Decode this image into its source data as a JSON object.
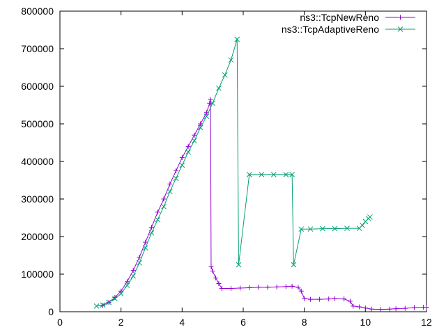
{
  "chart_data": {
    "type": "line",
    "title": "",
    "xlabel": "",
    "ylabel": "",
    "xlim": [
      0,
      12
    ],
    "ylim": [
      0,
      800000
    ],
    "x_ticks": [
      0,
      2,
      4,
      6,
      8,
      10,
      12
    ],
    "x_tick_labels": [
      "0",
      "2",
      "4",
      "6",
      "8",
      "10",
      "12"
    ],
    "y_ticks": [
      0,
      100000,
      200000,
      300000,
      400000,
      500000,
      600000,
      700000,
      800000
    ],
    "y_tick_labels": [
      "0",
      "100000",
      "200000",
      "300000",
      "400000",
      "500000",
      "600000",
      "700000",
      "800000"
    ],
    "grid": false,
    "legend_position": "top-right",
    "series": [
      {
        "name": "ns3::TcpNewReno",
        "color": "#9400d3",
        "marker": "plus",
        "points": [
          [
            1.4,
            16000
          ],
          [
            1.6,
            25000
          ],
          [
            1.8,
            38000
          ],
          [
            2.0,
            55000
          ],
          [
            2.2,
            80000
          ],
          [
            2.4,
            110000
          ],
          [
            2.6,
            145000
          ],
          [
            2.8,
            185000
          ],
          [
            3.0,
            225000
          ],
          [
            3.2,
            265000
          ],
          [
            3.4,
            300000
          ],
          [
            3.6,
            340000
          ],
          [
            3.8,
            375000
          ],
          [
            4.0,
            410000
          ],
          [
            4.2,
            440000
          ],
          [
            4.4,
            470000
          ],
          [
            4.6,
            500000
          ],
          [
            4.8,
            530000
          ],
          [
            4.9,
            555000
          ],
          [
            4.93,
            565000
          ],
          [
            4.95,
            120000
          ],
          [
            5.0,
            108000
          ],
          [
            5.1,
            90000
          ],
          [
            5.2,
            75000
          ],
          [
            5.3,
            62000
          ],
          [
            5.6,
            62000
          ],
          [
            5.9,
            63000
          ],
          [
            6.2,
            64000
          ],
          [
            6.5,
            65000
          ],
          [
            6.8,
            65000
          ],
          [
            7.1,
            66000
          ],
          [
            7.4,
            67000
          ],
          [
            7.6,
            68000
          ],
          [
            7.8,
            65000
          ],
          [
            7.9,
            55000
          ],
          [
            8.0,
            35000
          ],
          [
            8.2,
            33000
          ],
          [
            8.5,
            33000
          ],
          [
            8.8,
            34000
          ],
          [
            9.0,
            35000
          ],
          [
            9.3,
            34000
          ],
          [
            9.5,
            28000
          ],
          [
            9.6,
            15000
          ],
          [
            9.8,
            13000
          ],
          [
            10.0,
            10000
          ],
          [
            10.2,
            7000
          ],
          [
            10.5,
            6000
          ],
          [
            10.8,
            7000
          ],
          [
            11.0,
            8000
          ],
          [
            11.3,
            9000
          ],
          [
            11.6,
            11000
          ],
          [
            11.9,
            12000
          ],
          [
            12.0,
            12000
          ]
        ]
      },
      {
        "name": "ns3::TcpAdaptiveReno",
        "color": "#009e73",
        "marker": "cross",
        "points": [
          [
            1.2,
            15000
          ],
          [
            1.4,
            18000
          ],
          [
            1.6,
            25000
          ],
          [
            1.8,
            35000
          ],
          [
            2.0,
            48000
          ],
          [
            2.2,
            70000
          ],
          [
            2.4,
            95000
          ],
          [
            2.6,
            130000
          ],
          [
            2.8,
            170000
          ],
          [
            3.0,
            210000
          ],
          [
            3.2,
            245000
          ],
          [
            3.4,
            280000
          ],
          [
            3.6,
            320000
          ],
          [
            3.8,
            355000
          ],
          [
            4.0,
            390000
          ],
          [
            4.2,
            425000
          ],
          [
            4.4,
            455000
          ],
          [
            4.6,
            490000
          ],
          [
            4.8,
            520000
          ],
          [
            5.0,
            555000
          ],
          [
            5.2,
            595000
          ],
          [
            5.4,
            630000
          ],
          [
            5.6,
            670000
          ],
          [
            5.8,
            725000
          ],
          [
            5.85,
            125000
          ],
          [
            6.2,
            365000
          ],
          [
            6.6,
            365000
          ],
          [
            7.0,
            365000
          ],
          [
            7.4,
            365000
          ],
          [
            7.6,
            365000
          ],
          [
            7.65,
            125000
          ],
          [
            7.9,
            220000
          ],
          [
            8.2,
            220000
          ],
          [
            8.6,
            221000
          ],
          [
            9.0,
            221000
          ],
          [
            9.4,
            222000
          ],
          [
            9.8,
            222000
          ],
          [
            9.9,
            230000
          ],
          [
            10.0,
            240000
          ],
          [
            10.1,
            248000
          ],
          [
            10.15,
            252000
          ]
        ]
      }
    ]
  }
}
